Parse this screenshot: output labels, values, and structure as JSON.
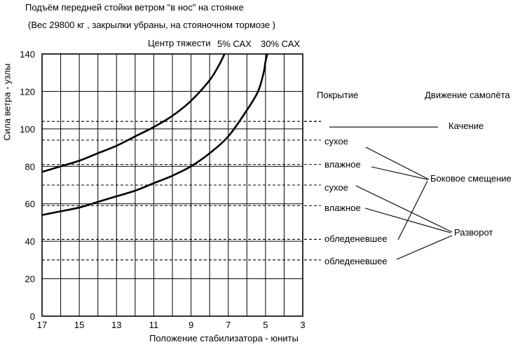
{
  "chart_data": {
    "type": "line",
    "title": "Подъём передней стойки ветром \"в нос\" на стоянке",
    "subtitle": "(Вес 29800 кг , закрылки убраны, на стояночном тормозе )",
    "xlabel": "Положение стабилизатора - юниты",
    "ylabel": "Сила ветра - узлы",
    "x_ticks": [
      "17",
      "15",
      "13",
      "11",
      "9",
      "7",
      "5",
      "3"
    ],
    "y_ticks": [
      "0",
      "20",
      "40",
      "60",
      "80",
      "100",
      "120",
      "140"
    ],
    "xlim": [
      17,
      3
    ],
    "ylim": [
      0,
      140
    ],
    "grid": true,
    "cg_header": "Центр тяжести",
    "series": [
      {
        "name": "5% САХ",
        "x": [
          17,
          16,
          15,
          14,
          13,
          12,
          11,
          10,
          9,
          8,
          7.5,
          7.2
        ],
        "y": [
          77,
          80,
          83,
          87,
          91,
          96,
          101,
          107,
          115,
          126,
          134,
          140
        ]
      },
      {
        "name": "30% САХ",
        "x": [
          17,
          16,
          15,
          14,
          13,
          12,
          11,
          10,
          9,
          8,
          7,
          6,
          5.4,
          5.1,
          5.0,
          4.9
        ],
        "y": [
          54,
          56,
          58,
          61,
          64,
          67,
          71,
          75,
          80,
          87,
          96,
          110,
          120,
          130,
          136,
          140
        ]
      }
    ],
    "reference_lines": [
      {
        "y": 104,
        "style": "dashed",
        "label": "",
        "target": "Качение"
      },
      {
        "y": 100,
        "style": "solid-short",
        "label": ""
      },
      {
        "y": 94,
        "style": "dashed",
        "label": "сухое",
        "target": "Боковое смещение"
      },
      {
        "y": 81,
        "style": "dashed",
        "label": "влажное",
        "target": "Боковое смещение"
      },
      {
        "y": 70,
        "style": "dashed",
        "label": "сухое",
        "target": "Разворот"
      },
      {
        "y": 59,
        "style": "dashed",
        "label": "влажное",
        "target": "Разворот"
      },
      {
        "y": 41,
        "style": "dashed",
        "label": "обледеневшее",
        "target": "Боковое смещение"
      },
      {
        "y": 30,
        "style": "dashed",
        "label": "обледеневшее",
        "target": "Разворот"
      }
    ],
    "right_headers": {
      "surface": "Покрытие",
      "movement": "Движение самолёта"
    },
    "movement_labels": {
      "rolling": "Качение",
      "side_shift": "Боковое смещение",
      "turn": "Разворот"
    }
  }
}
